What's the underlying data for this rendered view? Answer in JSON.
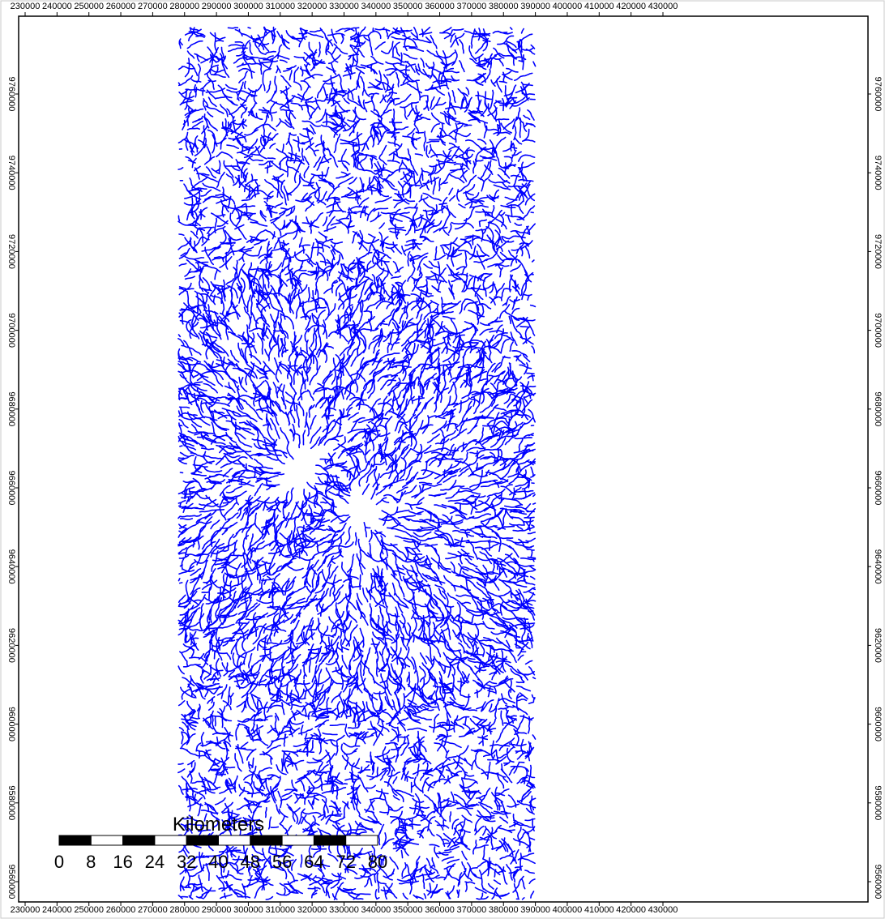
{
  "map": {
    "x_ticks": [
      "230000",
      "240000",
      "250000",
      "260000",
      "270000",
      "280000",
      "290000",
      "300000",
      "310000",
      "320000",
      "330000",
      "340000",
      "350000",
      "360000",
      "370000",
      "380000",
      "390000",
      "400000",
      "410000",
      "420000",
      "430000"
    ],
    "y_ticks": [
      "9760000",
      "9740000",
      "9720000",
      "9700000",
      "9680000",
      "9660000",
      "9640000",
      "9620000",
      "9600000",
      "9580000",
      "9560000"
    ],
    "x_range_m": [
      230000,
      430000
    ],
    "y_range_m": [
      9560000,
      9760000
    ],
    "extent_m": {
      "x_min": 278000,
      "x_max": 390000,
      "y_min": 9555000,
      "y_max": 9777000
    },
    "radial_centers_m": [
      [
        317000,
        9665000
      ],
      [
        335000,
        9654000
      ]
    ],
    "stream_color": "#0000ff",
    "frame_color": "#000000",
    "background_color": "#ffffff"
  },
  "scale_bar": {
    "title": "Kilometers",
    "labels": [
      "0",
      "8",
      "16",
      "24",
      "32",
      "40",
      "48",
      "56",
      "64",
      "72",
      "80"
    ]
  }
}
